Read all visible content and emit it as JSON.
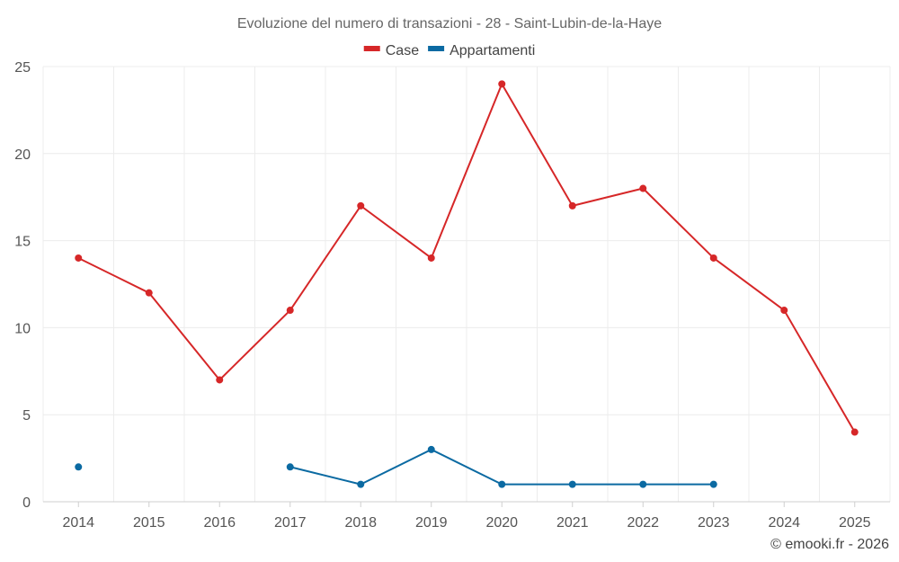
{
  "chart_data": {
    "type": "line",
    "title": "Evoluzione del numero di transazioni - 28 - Saint-Lubin-de-la-Haye",
    "xlabel": "",
    "ylabel": "",
    "categories": [
      "2014",
      "2015",
      "2016",
      "2017",
      "2018",
      "2019",
      "2020",
      "2021",
      "2022",
      "2023",
      "2024",
      "2025"
    ],
    "ylim": [
      0,
      25
    ],
    "yticks": [
      0,
      5,
      10,
      15,
      20,
      25
    ],
    "grid": true,
    "legend_position": "top-center",
    "series": [
      {
        "name": "Case",
        "color": "#d62728",
        "values": [
          14,
          12,
          7,
          11,
          17,
          14,
          24,
          17,
          18,
          14,
          11,
          4
        ]
      },
      {
        "name": "Appartamenti",
        "color": "#0b6aa2",
        "values": [
          2,
          null,
          null,
          2,
          1,
          3,
          1,
          1,
          1,
          1,
          null,
          null
        ]
      }
    ]
  },
  "credit": "© emooki.fr - 2026"
}
